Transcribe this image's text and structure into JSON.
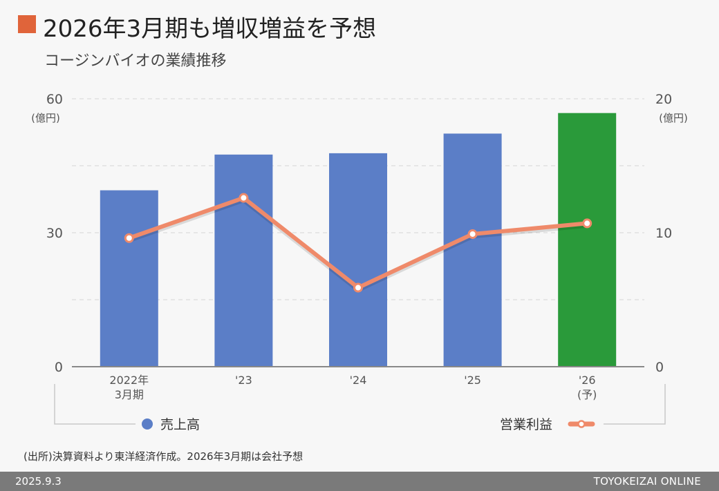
{
  "header": {
    "title": "2026年3月期も増収増益を予想",
    "subtitle": "コージンバイオの業績推移",
    "marker_color": "#e0643a"
  },
  "chart_data": {
    "type": "bar",
    "categories": [
      [
        "2022年",
        "3月期"
      ],
      [
        "'23"
      ],
      [
        "'24"
      ],
      [
        "'25"
      ],
      [
        "'26",
        "(予)"
      ]
    ],
    "series": [
      {
        "name": "売上高",
        "kind": "bar",
        "axis": "left",
        "values": [
          39.5,
          47.5,
          47.8,
          52.2,
          56.8
        ],
        "color": "#5b7ec7",
        "highlight_color": "#2a9a3a",
        "highlight_index": 4
      },
      {
        "name": "営業利益",
        "kind": "line",
        "axis": "right",
        "values": [
          9.6,
          12.6,
          5.9,
          9.9,
          10.7
        ],
        "color": "#ef8a6a"
      }
    ],
    "left_axis": {
      "ticks": [
        "0",
        "30",
        "60"
      ],
      "unit": "(億円)",
      "range": [
        0,
        60
      ]
    },
    "right_axis": {
      "ticks": [
        "0",
        "10",
        "20"
      ],
      "unit": "(億円)",
      "range": [
        0,
        20
      ]
    },
    "grid": true,
    "legend_placement": "bottom"
  },
  "note": "(出所)決算資料より東洋経済作成。2026年3月期は会社予想",
  "footer": {
    "date": "2025.9.3",
    "brand": "TOYOKEIZAI ONLINE"
  }
}
